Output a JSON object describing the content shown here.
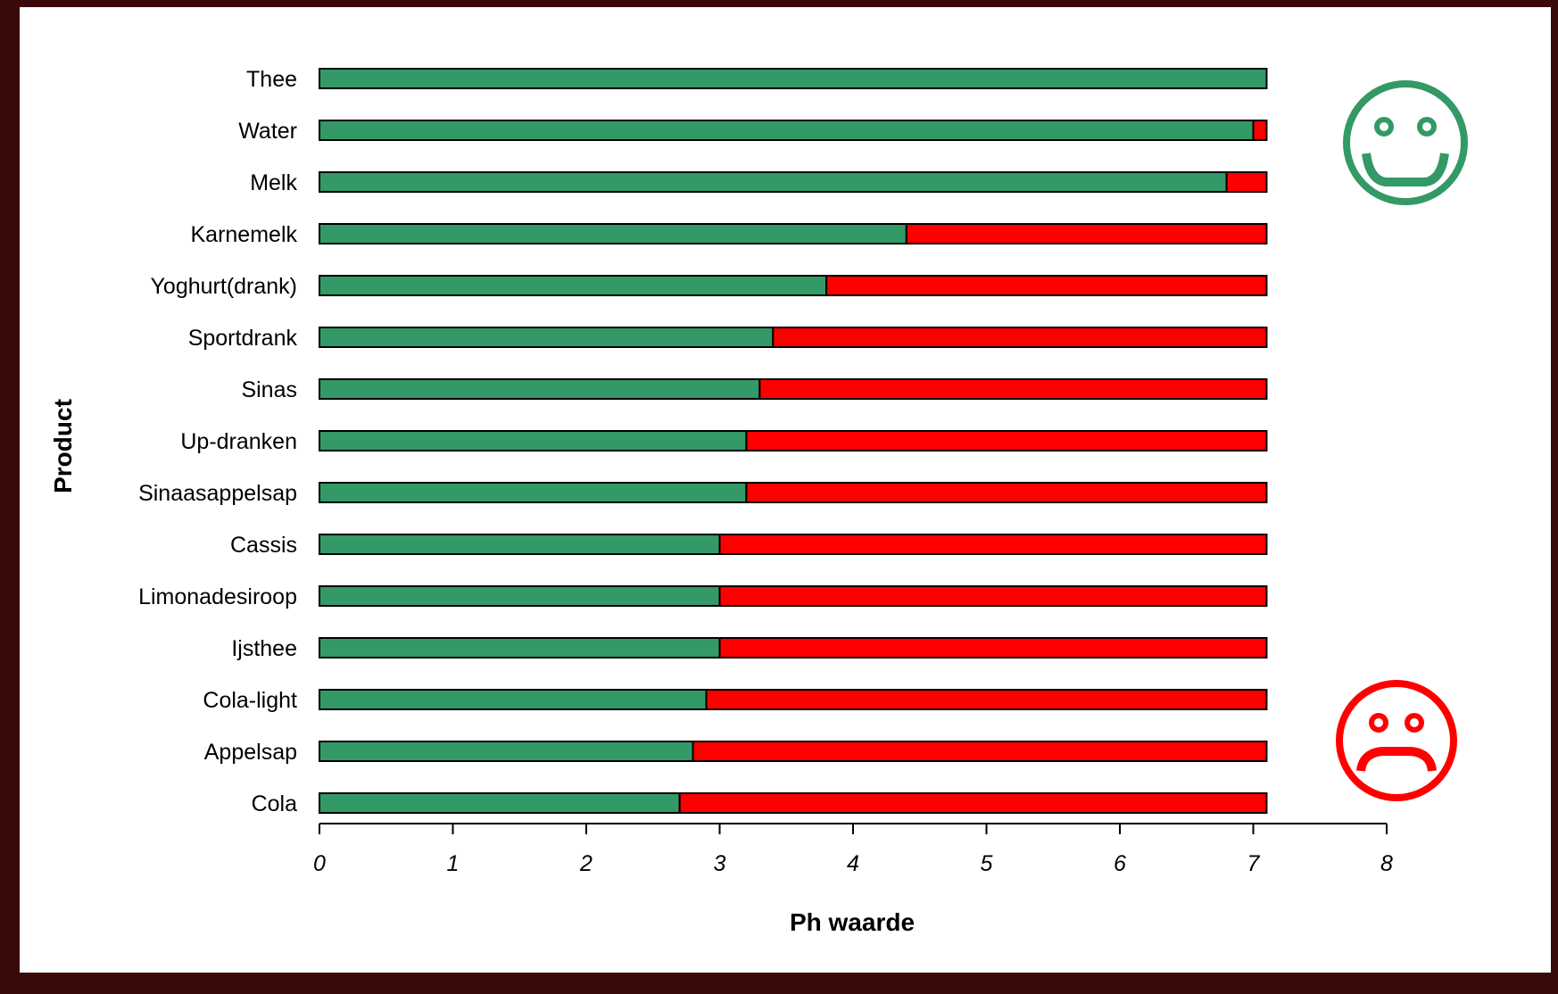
{
  "chart_data": {
    "type": "bar",
    "orientation": "horizontal",
    "stacked": true,
    "xlabel": "Ph waarde",
    "ylabel": "Product",
    "xlim": [
      0,
      8
    ],
    "xticks": [
      "0",
      "1",
      "2",
      "3",
      "4",
      "5",
      "6",
      "7",
      "8"
    ],
    "grid": false,
    "categories": [
      "Thee",
      "Water",
      "Melk",
      "Karnemelk",
      "Yoghurt(drank)",
      "Sportdrank",
      "Sinas",
      "Up-dranken",
      "Sinaasappelsap",
      "Cassis",
      "Limonadesiroop",
      "Ijsthee",
      "Cola-light",
      "Appelsap",
      "Cola"
    ],
    "series": [
      {
        "color": "#339966",
        "values": [
          7.1,
          7.0,
          6.8,
          4.4,
          3.8,
          3.4,
          3.3,
          3.2,
          3.2,
          3.0,
          3.0,
          3.0,
          2.9,
          2.8,
          2.7
        ]
      },
      {
        "color": "#ff0000",
        "values": [
          0.0,
          0.1,
          0.3,
          2.7,
          3.3,
          3.7,
          3.8,
          3.9,
          3.9,
          4.1,
          4.1,
          4.1,
          4.2,
          4.3,
          4.4
        ]
      }
    ],
    "icons": [
      {
        "name": "happy-smiley-icon",
        "color": "#339966"
      },
      {
        "name": "sad-smiley-icon",
        "color": "#ff0000"
      }
    ]
  }
}
